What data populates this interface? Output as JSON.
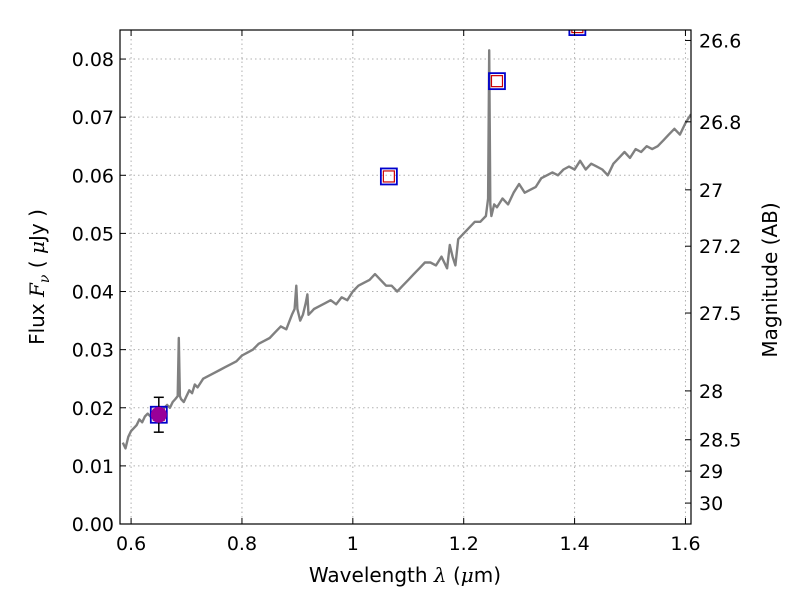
{
  "chart_data": {
    "type": "line",
    "xlabel": "Wavelength  λ (μm)",
    "ylabel": "Flux  Fν  ( μJy )",
    "y2label": "Magnitude (AB)",
    "xlim": [
      0.58,
      1.61
    ],
    "ylim": [
      0.0,
      0.085
    ],
    "grid": true,
    "x_ticks": [
      0.6,
      0.8,
      1.0,
      1.2,
      1.4,
      1.6
    ],
    "x_tick_labels": [
      "0.6",
      "0.8",
      "1",
      "1.2",
      "1.4",
      "1.6"
    ],
    "y_ticks": [
      0.0,
      0.01,
      0.02,
      0.03,
      0.04,
      0.05,
      0.06,
      0.07,
      0.08
    ],
    "y_tick_labels": [
      "0.00",
      "0.01",
      "0.02",
      "0.03",
      "0.04",
      "0.05",
      "0.06",
      "0.07",
      "0.08"
    ],
    "y2_ticks": [
      {
        "flux": 0.0832,
        "label": "26.6"
      },
      {
        "flux": 0.0692,
        "label": "26.8"
      },
      {
        "flux": 0.0575,
        "label": "27"
      },
      {
        "flux": 0.0478,
        "label": "27.2"
      },
      {
        "flux": 0.0363,
        "label": "27.5"
      },
      {
        "flux": 0.0229,
        "label": "28"
      },
      {
        "flux": 0.0145,
        "label": "28.5"
      },
      {
        "flux": 0.0091,
        "label": "29"
      },
      {
        "flux": 0.0036,
        "label": "30"
      }
    ],
    "spectrum": {
      "color": "#808080",
      "x": [
        0.585,
        0.59,
        0.595,
        0.6,
        0.605,
        0.61,
        0.615,
        0.62,
        0.625,
        0.63,
        0.635,
        0.64,
        0.645,
        0.65,
        0.655,
        0.66,
        0.665,
        0.67,
        0.675,
        0.68,
        0.684,
        0.686,
        0.688,
        0.69,
        0.695,
        0.7,
        0.705,
        0.71,
        0.715,
        0.72,
        0.73,
        0.74,
        0.75,
        0.76,
        0.77,
        0.78,
        0.79,
        0.8,
        0.81,
        0.82,
        0.83,
        0.84,
        0.85,
        0.86,
        0.87,
        0.88,
        0.89,
        0.895,
        0.898,
        0.9,
        0.905,
        0.91,
        0.915,
        0.918,
        0.92,
        0.925,
        0.93,
        0.94,
        0.95,
        0.96,
        0.97,
        0.98,
        0.99,
        1.0,
        1.01,
        1.02,
        1.03,
        1.04,
        1.05,
        1.06,
        1.07,
        1.08,
        1.09,
        1.1,
        1.11,
        1.12,
        1.13,
        1.14,
        1.15,
        1.16,
        1.17,
        1.175,
        1.18,
        1.185,
        1.19,
        1.2,
        1.21,
        1.22,
        1.23,
        1.24,
        1.244,
        1.246,
        1.248,
        1.25,
        1.255,
        1.26,
        1.27,
        1.28,
        1.29,
        1.3,
        1.31,
        1.32,
        1.33,
        1.34,
        1.35,
        1.36,
        1.37,
        1.38,
        1.39,
        1.4,
        1.41,
        1.42,
        1.43,
        1.44,
        1.45,
        1.46,
        1.47,
        1.48,
        1.49,
        1.5,
        1.51,
        1.52,
        1.53,
        1.54,
        1.55,
        1.56,
        1.57,
        1.58,
        1.59,
        1.6,
        1.61
      ],
      "y": [
        0.014,
        0.013,
        0.015,
        0.016,
        0.0165,
        0.017,
        0.018,
        0.0175,
        0.0185,
        0.019,
        0.0185,
        0.0195,
        0.019,
        0.0195,
        0.0195,
        0.02,
        0.0205,
        0.02,
        0.021,
        0.0215,
        0.022,
        0.032,
        0.022,
        0.0215,
        0.021,
        0.022,
        0.023,
        0.0225,
        0.024,
        0.0235,
        0.025,
        0.0255,
        0.026,
        0.0265,
        0.027,
        0.0275,
        0.028,
        0.029,
        0.0295,
        0.03,
        0.031,
        0.0315,
        0.032,
        0.033,
        0.034,
        0.0335,
        0.036,
        0.037,
        0.041,
        0.037,
        0.035,
        0.036,
        0.038,
        0.0395,
        0.036,
        0.0365,
        0.037,
        0.0375,
        0.038,
        0.0385,
        0.0378,
        0.039,
        0.0385,
        0.04,
        0.041,
        0.0415,
        0.042,
        0.043,
        0.042,
        0.041,
        0.041,
        0.04,
        0.041,
        0.042,
        0.043,
        0.044,
        0.045,
        0.045,
        0.0445,
        0.046,
        0.044,
        0.048,
        0.046,
        0.0445,
        0.049,
        0.05,
        0.051,
        0.052,
        0.052,
        0.053,
        0.056,
        0.0815,
        0.055,
        0.053,
        0.055,
        0.0545,
        0.056,
        0.055,
        0.057,
        0.0585,
        0.057,
        0.0575,
        0.058,
        0.0595,
        0.06,
        0.0605,
        0.06,
        0.061,
        0.0615,
        0.061,
        0.0625,
        0.061,
        0.062,
        0.0615,
        0.061,
        0.06,
        0.062,
        0.063,
        0.064,
        0.063,
        0.0645,
        0.064,
        0.065,
        0.0645,
        0.065,
        0.066,
        0.067,
        0.068,
        0.067,
        0.069,
        0.0705
      ]
    },
    "observed": {
      "x": 0.65,
      "y": 0.0188,
      "yerr": 0.003,
      "color": "#990099"
    },
    "model_points": [
      {
        "x": 0.65,
        "y": 0.0188
      },
      {
        "x": 1.065,
        "y": 0.0598
      },
      {
        "x": 1.26,
        "y": 0.0762
      },
      {
        "x": 1.405,
        "y": 0.0855
      }
    ],
    "colors": {
      "outer_square": "#0000cc",
      "inner_square": "#cc0000",
      "grid": "#b0b0b0"
    }
  }
}
